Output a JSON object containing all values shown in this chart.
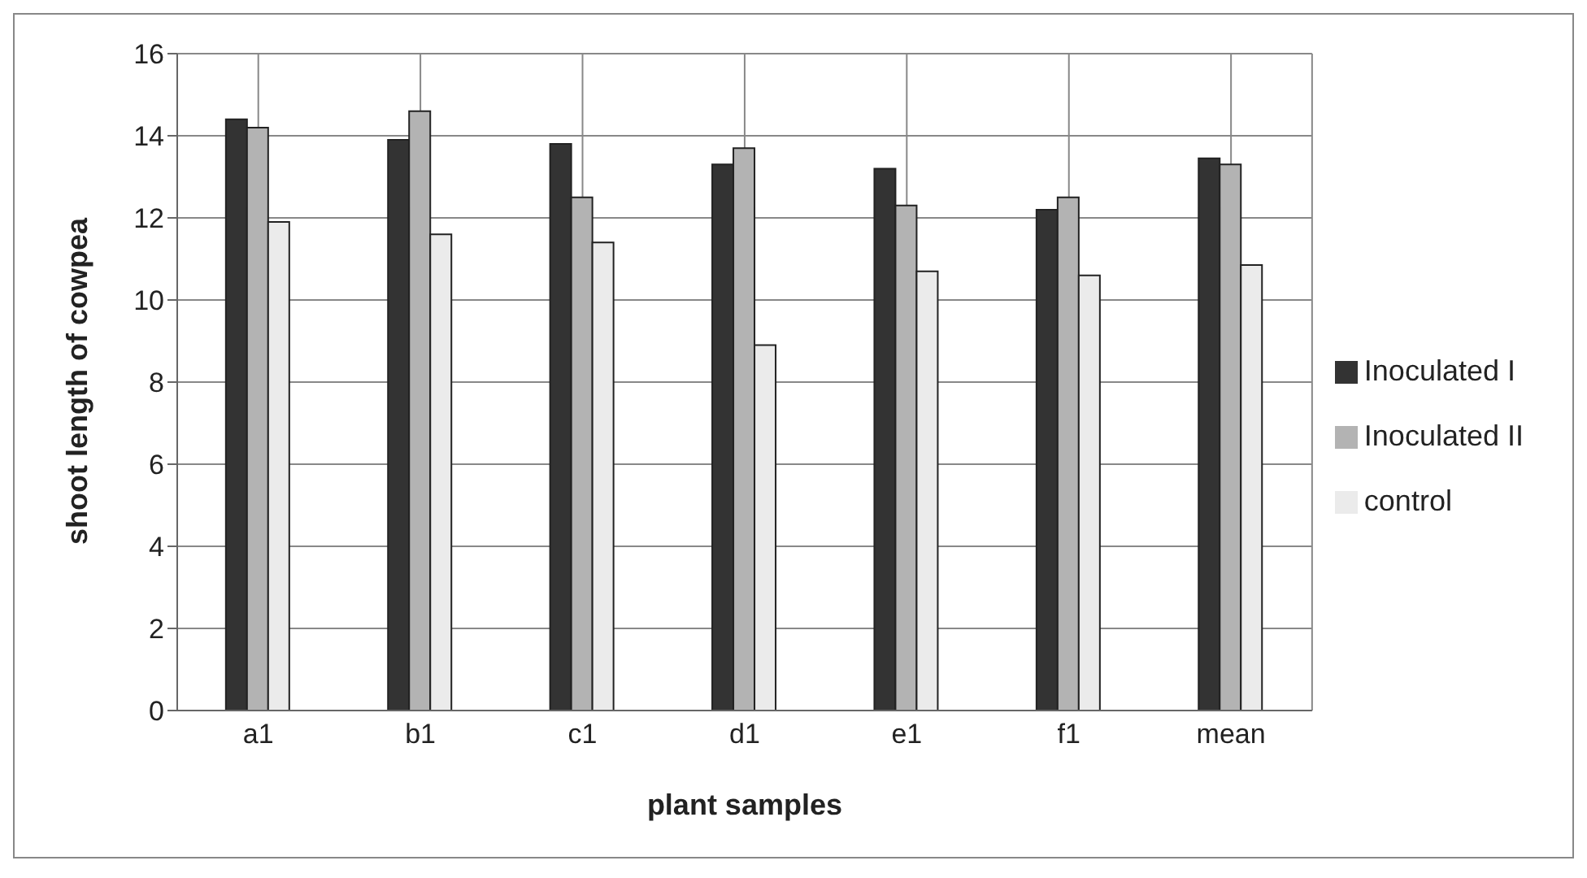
{
  "chart_data": {
    "type": "bar",
    "xlabel": "plant samples",
    "ylabel": "shoot length of cowpea",
    "categories": [
      "a1",
      "b1",
      "c1",
      "d1",
      "e1",
      "f1",
      "mean"
    ],
    "series": [
      {
        "name": "Inoculated I",
        "color": "#333333",
        "values": [
          14.4,
          13.9,
          13.8,
          13.3,
          13.2,
          12.2,
          13.45
        ]
      },
      {
        "name": "Inoculated II",
        "color": "#b3b3b3",
        "values": [
          14.2,
          14.6,
          12.5,
          13.7,
          12.3,
          12.5,
          13.3
        ]
      },
      {
        "name": "control",
        "color": "#ebebeb",
        "values": [
          11.9,
          11.6,
          11.4,
          8.9,
          10.7,
          10.6,
          10.85
        ]
      }
    ],
    "ylim": [
      0,
      16
    ],
    "yticks": [
      0,
      2,
      4,
      6,
      8,
      10,
      12,
      14,
      16
    ],
    "grid": true,
    "legend": "right"
  }
}
